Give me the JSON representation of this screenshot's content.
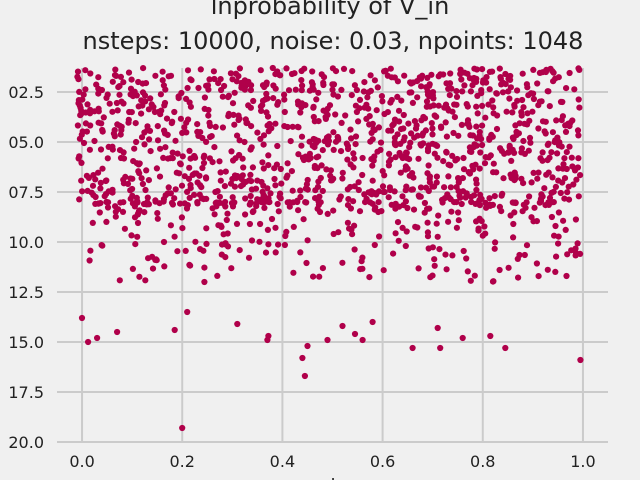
{
  "chart_data": {
    "type": "scatter",
    "title": "lnprobability of V_in",
    "subtitle": "nsteps: 10000, noise: 0.03, npoints: 1048",
    "xlabel": ".",
    "ylabel": "",
    "xlim": [
      -0.05,
      1.05
    ],
    "ylim": [
      -120.0,
      -101.3
    ],
    "grid": true,
    "style": "fivethirtyeight",
    "marker_color": "#b0004a",
    "background_color": "#f0f0f0",
    "grid_color": "#cbcbcb",
    "x_ticks": [
      0.0,
      0.2,
      0.4,
      0.6,
      0.8,
      1.0
    ],
    "x_tick_labels": [
      "0.0",
      "0.2",
      "0.4",
      "0.6",
      "0.8",
      "1.0"
    ],
    "y_ticks": [
      -102.5,
      -105.0,
      -107.5,
      -110.0,
      -112.5,
      -115.0,
      -117.5,
      -120.0
    ],
    "y_tick_labels": [
      "02.5",
      "05.0",
      "07.5",
      "10.0",
      "12.5",
      "15.0",
      "17.5",
      "20.0"
    ],
    "points": {
      "x_range": [
        -0.01,
        0.995
      ],
      "y_top": -101.2,
      "dense_band": [
        -101.3,
        -108.0
      ],
      "sparse_tail_to": -112.0,
      "n_band_sample": 1400,
      "outliers": [
        {
          "x": 0.0,
          "y": -113.8
        },
        {
          "x": 0.012,
          "y": -115.0
        },
        {
          "x": 0.03,
          "y": -114.8
        },
        {
          "x": 0.07,
          "y": -114.5
        },
        {
          "x": 0.185,
          "y": -114.4
        },
        {
          "x": 0.2,
          "y": -119.3
        },
        {
          "x": 0.21,
          "y": -113.5
        },
        {
          "x": 0.31,
          "y": -114.1
        },
        {
          "x": 0.37,
          "y": -114.9
        },
        {
          "x": 0.372,
          "y": -114.7
        },
        {
          "x": 0.44,
          "y": -115.8
        },
        {
          "x": 0.445,
          "y": -116.7
        },
        {
          "x": 0.45,
          "y": -115.2
        },
        {
          "x": 0.49,
          "y": -114.9
        },
        {
          "x": 0.52,
          "y": -114.2
        },
        {
          "x": 0.545,
          "y": -114.6
        },
        {
          "x": 0.56,
          "y": -114.9
        },
        {
          "x": 0.58,
          "y": -114.0
        },
        {
          "x": 0.66,
          "y": -115.3
        },
        {
          "x": 0.71,
          "y": -114.3
        },
        {
          "x": 0.715,
          "y": -115.3
        },
        {
          "x": 0.76,
          "y": -114.8
        },
        {
          "x": 0.815,
          "y": -114.7
        },
        {
          "x": 0.845,
          "y": -115.3
        },
        {
          "x": 0.995,
          "y": -115.9
        }
      ]
    }
  }
}
